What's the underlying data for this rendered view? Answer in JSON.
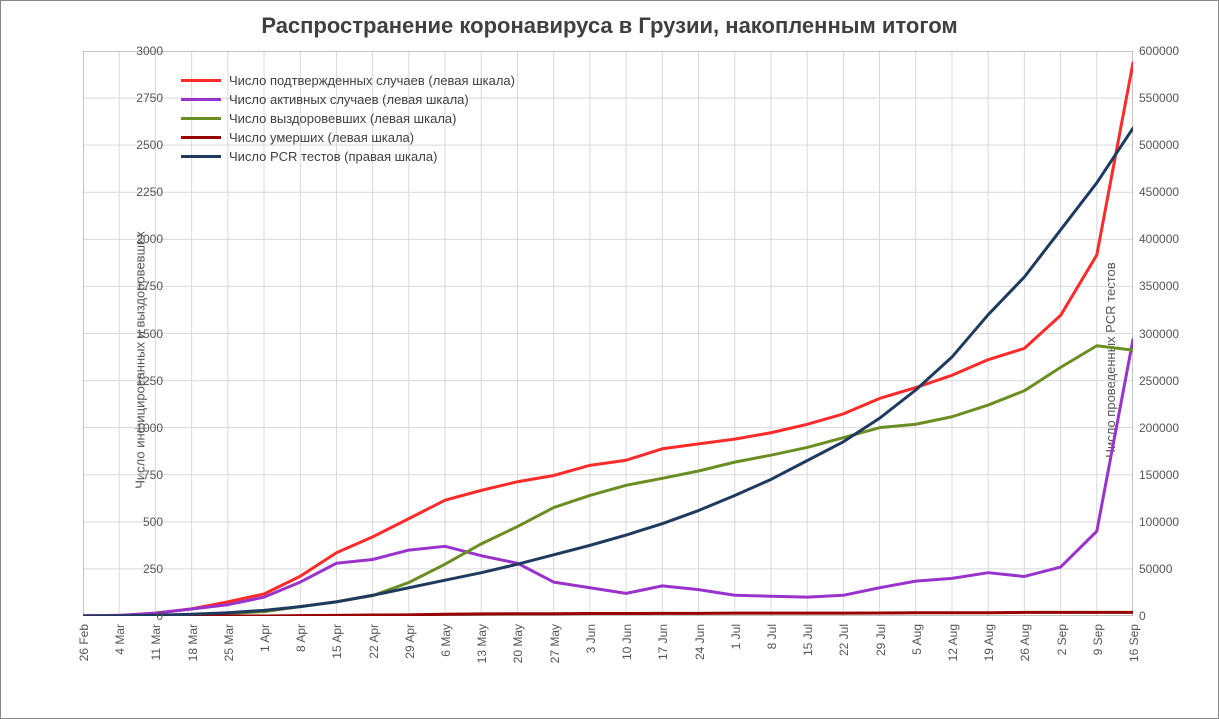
{
  "chart": {
    "type": "line",
    "title": "Распространение коронавируса в Грузии, накопленным итогом",
    "title_fontsize": 22,
    "title_color": "#404040",
    "background_color": "#ffffff",
    "plot_border_color": "#888888",
    "grid_color": "#d9d9d9",
    "grid_on": true,
    "y_axis_left": {
      "label": "Число инфицированных и выздоровевших",
      "label_fontsize": 13,
      "min": 0,
      "max": 3000,
      "tick_step": 250,
      "ticks": [
        0,
        250,
        500,
        750,
        1000,
        1250,
        1500,
        1750,
        2000,
        2250,
        2500,
        2750,
        3000
      ]
    },
    "y_axis_right": {
      "label": "Число проведенных PCR тестов",
      "label_fontsize": 13,
      "min": 0,
      "max": 600000,
      "tick_step": 50000,
      "ticks": [
        0,
        50000,
        100000,
        150000,
        200000,
        250000,
        300000,
        350000,
        400000,
        450000,
        500000,
        550000,
        600000
      ]
    },
    "x_axis": {
      "labels": [
        "26 Feb",
        "4 Mar",
        "11 Mar",
        "18 Mar",
        "25 Mar",
        "1 Apr",
        "8 Apr",
        "15 Apr",
        "22 Apr",
        "29 Apr",
        "6 May",
        "13 May",
        "20 May",
        "27 May",
        "3 Jun",
        "10 Jun",
        "17 Jun",
        "24 Jun",
        "1 Jul",
        "8 Jul",
        "15 Jul",
        "22 Jul",
        "29 Jul",
        "5 Aug",
        "12 Aug",
        "19 Aug",
        "26 Aug",
        "2 Sep",
        "9 Sep",
        "16 Sep"
      ],
      "label_fontsize": 12,
      "rotate": -90
    },
    "legend": {
      "position": "upper-left",
      "fontsize": 13,
      "items": [
        {
          "label": "Число подтвержденных случаев (левая шкала)",
          "color": "#ff2a2a"
        },
        {
          "label": "Число активных случаев (левая шкала)",
          "color": "#9933cc"
        },
        {
          "label": "Число выздоровевших (левая шкала)",
          "color": "#6b8e23"
        },
        {
          "label": "Число умерших (левая шкала)",
          "color": "#990000"
        },
        {
          "label": "Число PCR тестов (правая шкала)",
          "color": "#1f3a5f"
        }
      ]
    },
    "line_width": 3,
    "series": [
      {
        "name": "confirmed",
        "axis": "left",
        "color": "#ff2a2a",
        "values": [
          1,
          3,
          15,
          38,
          75,
          117,
          211,
          336,
          420,
          517,
          615,
          667,
          713,
          746,
          800,
          827,
          888,
          914,
          939,
          973,
          1018,
          1073,
          1155,
          1213,
          1278,
          1361,
          1421,
          1596,
          1917,
          2937
        ]
      },
      {
        "name": "active",
        "axis": "left",
        "color": "#9933cc",
        "values": [
          1,
          3,
          15,
          37,
          60,
          100,
          180,
          280,
          300,
          350,
          370,
          320,
          280,
          180,
          150,
          120,
          160,
          140,
          110,
          105,
          100,
          110,
          150,
          185,
          200,
          230,
          210,
          260,
          450,
          1468
        ]
      },
      {
        "name": "recovered",
        "axis": "left",
        "color": "#6b8e23",
        "values": [
          0,
          0,
          0,
          1,
          14,
          23,
          50,
          76,
          108,
          178,
          275,
          383,
          475,
          576,
          640,
          694,
          731,
          770,
          817,
          854,
          895,
          947,
          1000,
          1018,
          1058,
          1120,
          1196,
          1320,
          1435,
          1412
        ]
      },
      {
        "name": "deaths",
        "axis": "left",
        "color": "#990000",
        "values": [
          0,
          0,
          0,
          0,
          0,
          0,
          2,
          3,
          5,
          6,
          9,
          11,
          12,
          12,
          13,
          13,
          14,
          14,
          15,
          15,
          15,
          15,
          16,
          17,
          17,
          17,
          19,
          19,
          19,
          19
        ]
      },
      {
        "name": "pcr_tests",
        "axis": "right",
        "color": "#1f3a5f",
        "values": [
          50,
          200,
          800,
          1800,
          3500,
          6000,
          10000,
          15000,
          22000,
          30000,
          38000,
          46000,
          55000,
          65000,
          75000,
          86000,
          98000,
          112000,
          128000,
          145000,
          165000,
          185000,
          210000,
          240000,
          275000,
          320000,
          360000,
          410000,
          460000,
          518000
        ]
      }
    ]
  }
}
